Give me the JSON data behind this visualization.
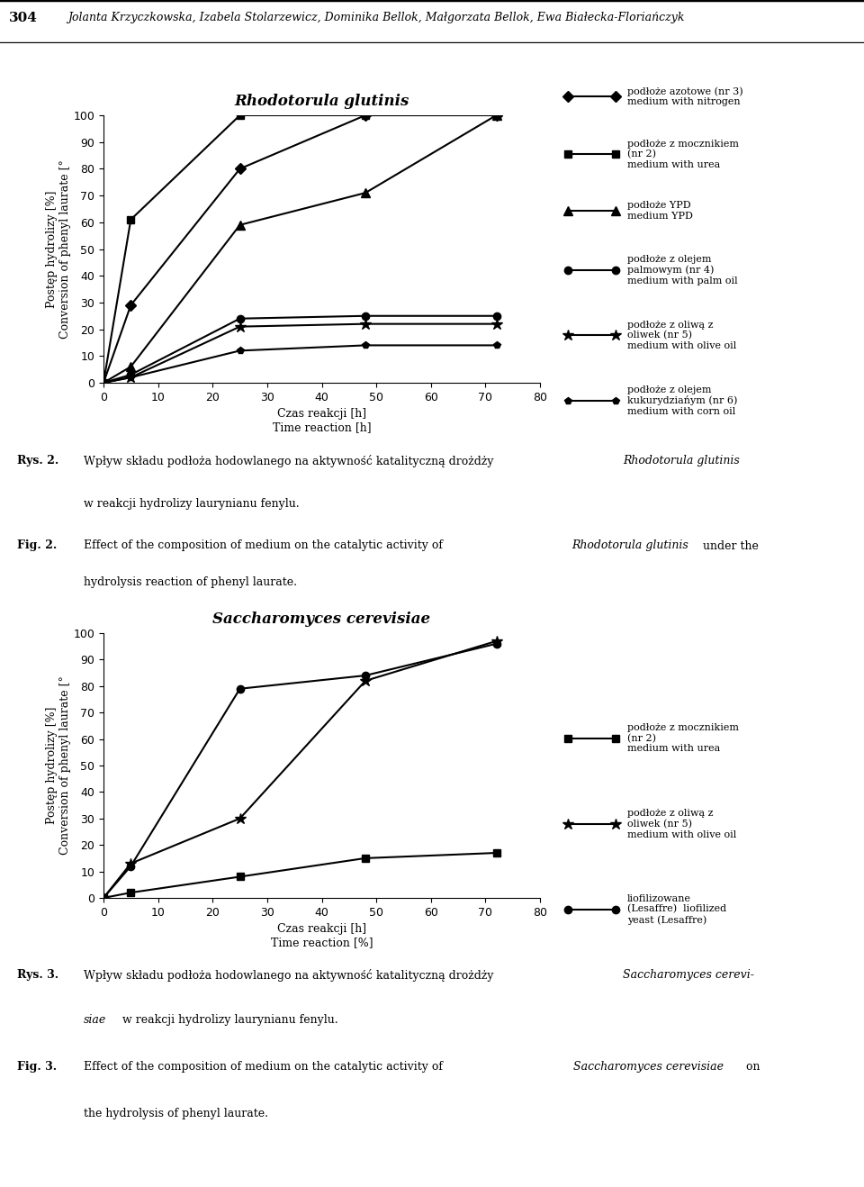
{
  "page_header_num": "304",
  "page_header_authors": "Jolanta Krzyczkowska, Izabela Stolarzewicz, Dominika Bellok, Małgorzata Bellok, Ewa Białecka-Floriańczyk",
  "fig1_title": "Rhodotorula glutinis",
  "fig1_xlabel1": "Czas reakcji [h]",
  "fig1_xlabel2": "Time reaction [h]",
  "fig1_ylabel1": "Postęp hydrolizy [%]",
  "fig1_ylabel2": "Conversion of phenyl laurate [°",
  "fig1_xlim": [
    0,
    80
  ],
  "fig1_ylim": [
    0,
    100
  ],
  "fig1_xticks": [
    0,
    10,
    20,
    30,
    40,
    50,
    60,
    70,
    80
  ],
  "fig1_yticks": [
    0,
    10,
    20,
    30,
    40,
    50,
    60,
    70,
    80,
    90,
    100
  ],
  "fig1_series": [
    {
      "marker": "D",
      "x": [
        0,
        5,
        25,
        48,
        72
      ],
      "y": [
        0,
        29,
        80,
        100,
        100
      ]
    },
    {
      "marker": "s",
      "x": [
        0,
        5,
        25,
        48,
        72
      ],
      "y": [
        0,
        61,
        100,
        100,
        100
      ]
    },
    {
      "marker": "^",
      "x": [
        0,
        5,
        25,
        48,
        72
      ],
      "y": [
        0,
        6,
        59,
        71,
        100
      ]
    },
    {
      "marker": "o",
      "x": [
        0,
        5,
        25,
        48,
        72
      ],
      "y": [
        0,
        3,
        24,
        25,
        25
      ]
    },
    {
      "marker": "*",
      "x": [
        0,
        5,
        25,
        48,
        72
      ],
      "y": [
        0,
        2,
        21,
        22,
        22
      ]
    },
    {
      "marker": "p",
      "x": [
        0,
        5,
        25,
        48,
        72
      ],
      "y": [
        0,
        2,
        12,
        14,
        14
      ]
    }
  ],
  "fig1_legend": [
    {
      "marker": "D",
      "text": "podłoże azotowe (nr 3)\nmedium with nitrogen"
    },
    {
      "marker": "s",
      "text": "podłoże z mocznikiem\n(nr 2)\nmedium with urea"
    },
    {
      "marker": "^",
      "text": "podłoże YPD\nmedium YPD"
    },
    {
      "marker": "o",
      "text": "podłoże z olejem\npalmowym (nr 4)\nmedium with palm oil"
    },
    {
      "marker": "*",
      "text": "podłoże z oliwą z\noliwek (nr 5)\nmedium with olive oil"
    },
    {
      "marker": "p",
      "text": "podłoże z olejem\nkukurydziańym (nr 6)\nmedium with corn oil"
    }
  ],
  "fig2_title": "Saccharomyces cerevisiae",
  "fig2_xlabel1": "Czas reakcji [h]",
  "fig2_xlabel2": "Time reaction [%]",
  "fig2_ylabel1": "Postęp hydrolizy [%]",
  "fig2_ylabel2": "Conversion of phenyl laurate [°",
  "fig2_xlim": [
    0,
    80
  ],
  "fig2_ylim": [
    0,
    100
  ],
  "fig2_xticks": [
    0,
    10,
    20,
    30,
    40,
    50,
    60,
    70,
    80
  ],
  "fig2_yticks": [
    0,
    10,
    20,
    30,
    40,
    50,
    60,
    70,
    80,
    90,
    100
  ],
  "fig2_series": [
    {
      "marker": "s",
      "x": [
        0,
        5,
        25,
        48,
        72
      ],
      "y": [
        0,
        2,
        8,
        15,
        17
      ]
    },
    {
      "marker": "*",
      "x": [
        0,
        5,
        25,
        48,
        72
      ],
      "y": [
        0,
        13,
        30,
        82,
        97
      ]
    },
    {
      "marker": "o",
      "x": [
        0,
        5,
        25,
        48,
        72
      ],
      "y": [
        0,
        12,
        79,
        84,
        96
      ]
    }
  ],
  "fig2_legend": [
    {
      "marker": "s",
      "text": "podłoże z mocznikiem\n(nr 2)\nmedium with urea"
    },
    {
      "marker": "*",
      "text": "podłoże z oliwą z\noliwek (nr 5)\nmedium with olive oil"
    },
    {
      "marker": "o",
      "text": "liofilizowane\n(Lesaffre)  liofilized\nyeast (Lesaffre)"
    }
  ]
}
